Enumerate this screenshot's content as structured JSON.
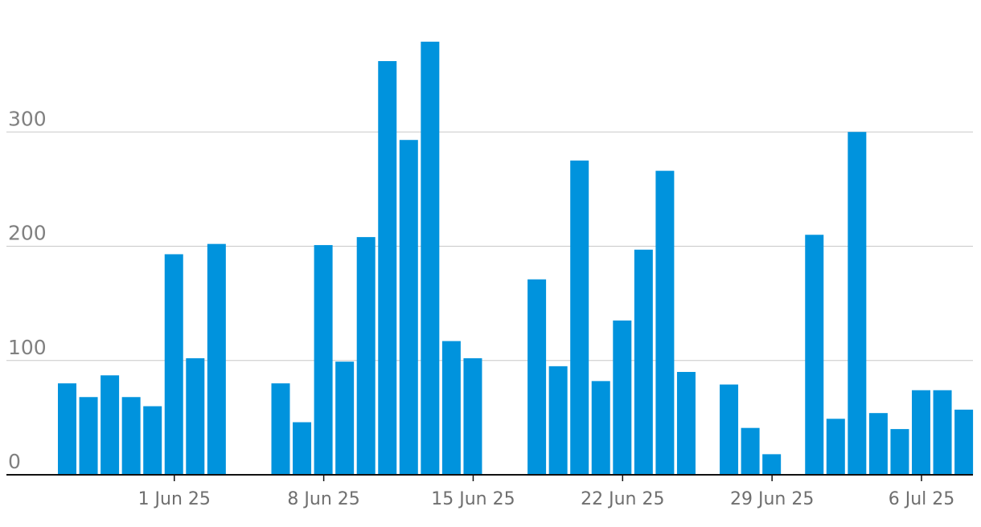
{
  "chart_data": {
    "type": "bar",
    "title": "",
    "xlabel": "",
    "ylabel": "",
    "ylim": [
      0,
      380
    ],
    "yticks": [
      0,
      100,
      200,
      300
    ],
    "grid": true,
    "bar_color": "#0093dd",
    "xtick_labels": [
      {
        "date": "2025-06-01",
        "label": "1 Jun 25"
      },
      {
        "date": "2025-06-08",
        "label": "8 Jun 25"
      },
      {
        "date": "2025-06-15",
        "label": "15 Jun 25"
      },
      {
        "date": "2025-06-22",
        "label": "22 Jun 25"
      },
      {
        "date": "2025-06-29",
        "label": "29 Jun 25"
      },
      {
        "date": "2025-07-06",
        "label": "6 Jul 25"
      }
    ],
    "x": [
      "2025-05-27",
      "2025-05-28",
      "2025-05-29",
      "2025-05-30",
      "2025-05-31",
      "2025-06-01",
      "2025-06-02",
      "2025-06-03",
      "2025-06-04",
      "2025-06-05",
      "2025-06-06",
      "2025-06-07",
      "2025-06-08",
      "2025-06-09",
      "2025-06-10",
      "2025-06-11",
      "2025-06-12",
      "2025-06-13",
      "2025-06-14",
      "2025-06-15",
      "2025-06-16",
      "2025-06-17",
      "2025-06-18",
      "2025-06-19",
      "2025-06-20",
      "2025-06-21",
      "2025-06-22",
      "2025-06-23",
      "2025-06-24",
      "2025-06-25",
      "2025-06-26",
      "2025-06-27",
      "2025-06-28",
      "2025-06-29",
      "2025-06-30",
      "2025-07-01",
      "2025-07-02",
      "2025-07-03",
      "2025-07-04",
      "2025-07-05",
      "2025-07-06",
      "2025-07-07",
      "2025-07-08"
    ],
    "values": [
      80,
      68,
      87,
      68,
      60,
      193,
      102,
      202,
      0,
      0,
      80,
      46,
      201,
      99,
      208,
      362,
      293,
      379,
      117,
      102,
      0,
      0,
      171,
      95,
      275,
      82,
      135,
      197,
      266,
      90,
      0,
      79,
      41,
      18,
      0,
      210,
      49,
      300,
      54,
      40,
      74,
      74,
      57
    ]
  }
}
